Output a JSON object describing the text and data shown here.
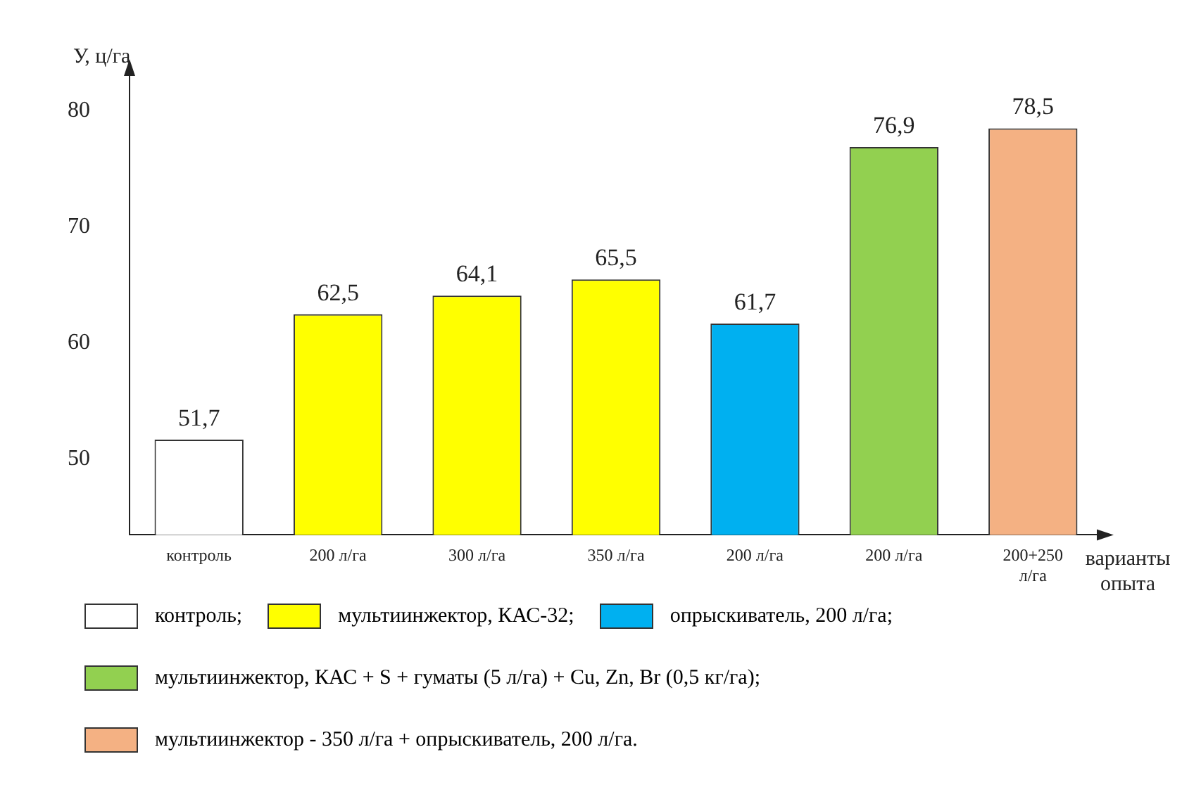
{
  "chart_data": {
    "type": "bar",
    "xlabel": "варианты опыта",
    "ylabel": "У, ц/га",
    "categories": [
      "контроль",
      "200 л/га",
      "300 л/га",
      "350 л/га",
      "200 л/га",
      "200 л/га",
      "200+250 л/га"
    ],
    "series": [
      {
        "name": "контроль;",
        "color": "#ffffff",
        "values": [
          51.7,
          null,
          null,
          null,
          null,
          null,
          null
        ],
        "value_labels": [
          "51,7",
          null,
          null,
          null,
          null,
          null,
          null
        ]
      },
      {
        "name": "мультиинжектор, КАС-32;",
        "color": "#ffff00",
        "values": [
          null,
          62.5,
          64.1,
          65.5,
          null,
          null,
          null
        ],
        "value_labels": [
          null,
          "62,5",
          "64,1",
          "65,5",
          null,
          null,
          null
        ]
      },
      {
        "name": "опрыскиватель, 200 л/га;",
        "color": "#00b0f0",
        "values": [
          null,
          null,
          null,
          null,
          61.7,
          null,
          null
        ],
        "value_labels": [
          null,
          null,
          null,
          null,
          "61,7",
          null,
          null
        ]
      },
      {
        "name": "мультиинжектор, КАС + S + гуматы (5 л/га) + Cu, Zn, Br (0,5 кг/га);",
        "color": "#92d050",
        "values": [
          null,
          null,
          null,
          null,
          null,
          76.9,
          null
        ],
        "value_labels": [
          null,
          null,
          null,
          null,
          null,
          "76,9",
          null
        ]
      },
      {
        "name": "мультиинжектор - 350 л/га + опрыскиватель, 200 л/га.",
        "color": "#f4b183",
        "values": [
          null,
          null,
          null,
          null,
          null,
          null,
          78.5
        ],
        "value_labels": [
          null,
          null,
          null,
          null,
          null,
          null,
          "78,5"
        ]
      }
    ],
    "ylim": [
      43.5,
      83.5
    ],
    "yticks": [
      50,
      60,
      70,
      80
    ],
    "grid": false,
    "legend": "bottom"
  }
}
